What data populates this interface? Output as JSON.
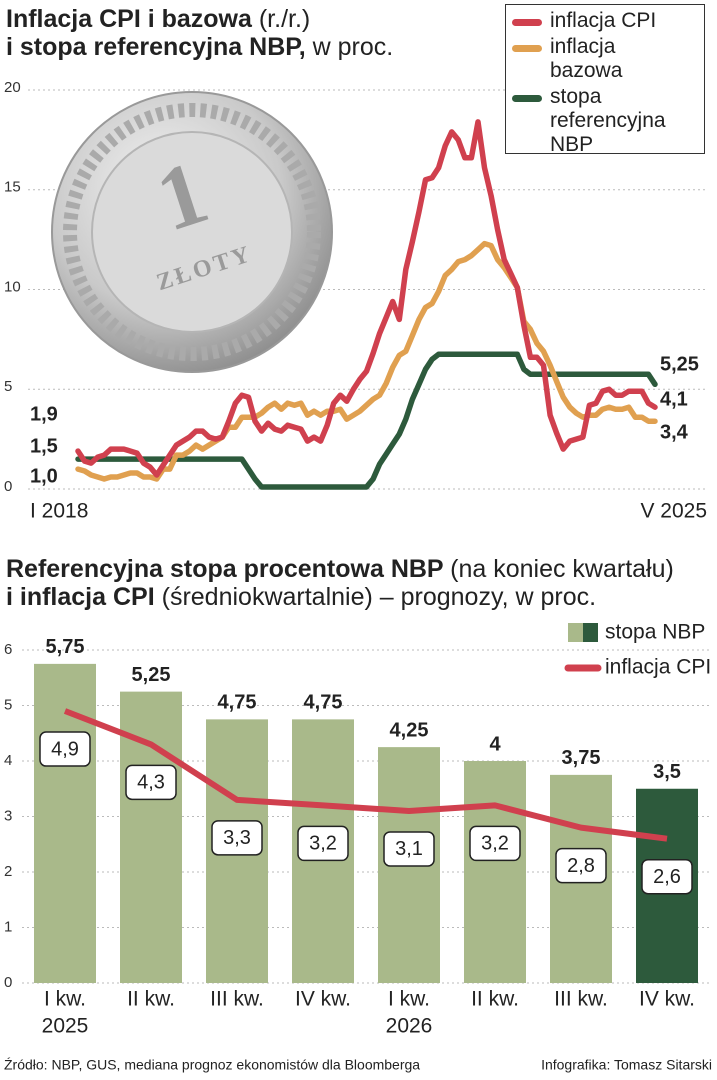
{
  "chart_data": [
    {
      "type": "line",
      "title": [
        "Inflacja CPI i bazowa",
        "(r./r.)",
        "i stopa referencyjna NBP,",
        "w proc."
      ],
      "categories": [
        "I 2018",
        null,
        null,
        null,
        null,
        null,
        null,
        null,
        null,
        null,
        null,
        null,
        null,
        null,
        null,
        null,
        null,
        null,
        null,
        null,
        null,
        null,
        null,
        null,
        null,
        null,
        null,
        null,
        null,
        null,
        null,
        null,
        null,
        null,
        null,
        null,
        null,
        null,
        null,
        null,
        null,
        null,
        null,
        null,
        null,
        null,
        null,
        null,
        null,
        null,
        null,
        null,
        null,
        null,
        null,
        null,
        null,
        null,
        null,
        null,
        null,
        null,
        null,
        null,
        null,
        null,
        null,
        null,
        null,
        null,
        null,
        null,
        null,
        null,
        null,
        null,
        null,
        null,
        null,
        null,
        null,
        null,
        null,
        null,
        null,
        null,
        null,
        null,
        "V 2025"
      ],
      "ylim": [
        0,
        20
      ],
      "yticks": [
        0,
        5,
        10,
        15,
        20
      ],
      "grid": true,
      "series": [
        {
          "name": "inflacja CPI",
          "color": "#d0404e",
          "values": [
            1.9,
            1.4,
            1.3,
            1.6,
            1.7,
            2.0,
            2.0,
            2.0,
            1.9,
            1.8,
            1.3,
            1.1,
            0.7,
            1.2,
            1.7,
            2.2,
            2.4,
            2.6,
            2.9,
            2.9,
            2.6,
            2.5,
            2.6,
            3.4,
            4.3,
            4.7,
            4.6,
            3.4,
            2.9,
            3.3,
            3.0,
            2.9,
            3.2,
            3.1,
            3.0,
            2.4,
            2.6,
            2.4,
            3.2,
            4.3,
            4.7,
            4.4,
            5.0,
            5.5,
            5.9,
            6.8,
            7.8,
            8.6,
            9.4,
            8.5,
            11.0,
            12.4,
            13.9,
            15.5,
            15.6,
            16.1,
            17.2,
            17.9,
            17.5,
            16.6,
            16.6,
            18.4,
            16.1,
            14.7,
            13.0,
            11.5,
            10.8,
            10.1,
            8.2,
            6.6,
            6.6,
            6.2,
            3.7,
            2.8,
            2.0,
            2.4,
            2.5,
            2.6,
            4.2,
            4.3,
            4.9,
            5.0,
            4.7,
            4.7,
            4.9,
            4.9,
            4.9,
            4.3,
            4.1
          ],
          "value_labels": [
            "1,9",
            null,
            null,
            null,
            null,
            null,
            null,
            null,
            null,
            null,
            null,
            null,
            null,
            null,
            null,
            null,
            null,
            null,
            null,
            null,
            null,
            null,
            null,
            null,
            null,
            null,
            null,
            null,
            null,
            null,
            null,
            null,
            null,
            null,
            null,
            null,
            null,
            null,
            null,
            null,
            null,
            null,
            null,
            null,
            null,
            null,
            null,
            null,
            null,
            null,
            null,
            null,
            null,
            null,
            null,
            null,
            null,
            null,
            null,
            null,
            null,
            null,
            null,
            null,
            null,
            null,
            null,
            null,
            null,
            null,
            null,
            null,
            null,
            null,
            null,
            null,
            null,
            null,
            null,
            null,
            null,
            null,
            null,
            null,
            null,
            null,
            null,
            null,
            "4,1"
          ]
        },
        {
          "name": "inflacja bazowa",
          "color": "#e0a050",
          "values": [
            1.0,
            0.9,
            0.7,
            0.6,
            0.5,
            0.6,
            0.6,
            0.7,
            0.8,
            0.8,
            0.6,
            0.6,
            0.5,
            1.0,
            1.0,
            1.7,
            1.7,
            1.9,
            2.2,
            2.0,
            2.2,
            2.4,
            2.6,
            3.1,
            3.1,
            3.6,
            3.6,
            3.6,
            3.8,
            4.1,
            4.3,
            4.0,
            4.3,
            4.2,
            4.3,
            3.7,
            3.9,
            3.7,
            3.9,
            3.9,
            4.0,
            3.5,
            3.7,
            3.9,
            4.2,
            4.5,
            4.7,
            5.3,
            6.1,
            6.7,
            6.9,
            7.7,
            8.5,
            9.1,
            9.3,
            9.9,
            10.7,
            11.0,
            11.4,
            11.5,
            11.7,
            12.0,
            12.3,
            12.2,
            11.5,
            11.1,
            10.6,
            10.1,
            8.4,
            8.0,
            7.3,
            6.9,
            6.2,
            5.4,
            4.6,
            4.1,
            3.8,
            3.6,
            3.7,
            3.7,
            4.0,
            4.1,
            4.0,
            4.0,
            4.1,
            3.6,
            3.6,
            3.4,
            3.4
          ],
          "value_labels": [
            "1,0",
            null,
            null,
            null,
            null,
            null,
            null,
            null,
            null,
            null,
            null,
            null,
            null,
            null,
            null,
            null,
            null,
            null,
            null,
            null,
            null,
            null,
            null,
            null,
            null,
            null,
            null,
            null,
            null,
            null,
            null,
            null,
            null,
            null,
            null,
            null,
            null,
            null,
            null,
            null,
            null,
            null,
            null,
            null,
            null,
            null,
            null,
            null,
            null,
            null,
            null,
            null,
            null,
            null,
            null,
            null,
            null,
            null,
            null,
            null,
            null,
            null,
            null,
            null,
            null,
            null,
            null,
            null,
            null,
            null,
            null,
            null,
            null,
            null,
            null,
            null,
            null,
            null,
            null,
            null,
            null,
            null,
            null,
            null,
            null,
            null,
            null,
            null,
            "3,4"
          ]
        },
        {
          "name": "stopa referencyjna NBP",
          "color": "#2d5a3c",
          "values": [
            1.5,
            1.5,
            1.5,
            1.5,
            1.5,
            1.5,
            1.5,
            1.5,
            1.5,
            1.5,
            1.5,
            1.5,
            1.5,
            1.5,
            1.5,
            1.5,
            1.5,
            1.5,
            1.5,
            1.5,
            1.5,
            1.5,
            1.5,
            1.5,
            1.5,
            1.5,
            1.0,
            0.5,
            0.1,
            0.1,
            0.1,
            0.1,
            0.1,
            0.1,
            0.1,
            0.1,
            0.1,
            0.1,
            0.1,
            0.1,
            0.1,
            0.1,
            0.1,
            0.1,
            0.1,
            0.5,
            1.25,
            1.75,
            2.25,
            2.75,
            3.5,
            4.5,
            5.25,
            6.0,
            6.5,
            6.75,
            6.75,
            6.75,
            6.75,
            6.75,
            6.75,
            6.75,
            6.75,
            6.75,
            6.75,
            6.75,
            6.75,
            6.75,
            6.0,
            5.75,
            5.75,
            5.75,
            5.75,
            5.75,
            5.75,
            5.75,
            5.75,
            5.75,
            5.75,
            5.75,
            5.75,
            5.75,
            5.75,
            5.75,
            5.75,
            5.75,
            5.75,
            5.75,
            5.25
          ],
          "value_labels": [
            "1,5",
            null,
            null,
            null,
            null,
            null,
            null,
            null,
            null,
            null,
            null,
            null,
            null,
            null,
            null,
            null,
            null,
            null,
            null,
            null,
            null,
            null,
            null,
            null,
            null,
            null,
            null,
            null,
            null,
            null,
            null,
            null,
            null,
            null,
            null,
            null,
            null,
            null,
            null,
            null,
            null,
            null,
            null,
            null,
            null,
            null,
            null,
            null,
            null,
            null,
            null,
            null,
            null,
            null,
            null,
            null,
            null,
            null,
            null,
            null,
            null,
            null,
            null,
            null,
            null,
            null,
            null,
            null,
            null,
            null,
            null,
            null,
            null,
            null,
            null,
            null,
            null,
            null,
            null,
            null,
            null,
            null,
            null,
            null,
            null,
            null,
            null,
            null,
            "5,25"
          ]
        }
      ]
    },
    {
      "type": "bar",
      "title": [
        "Referencyjna stopa procentowa NBP",
        "(na koniec kwartału)",
        "i inflacja CPI",
        "(średniokwartalnie) – prognozy, w proc."
      ],
      "categories": [
        "I kw.",
        "II kw.",
        "III kw.",
        "IV kw.",
        "I kw.",
        "II kw.",
        "III kw.",
        "IV kw."
      ],
      "x_group_labels": [
        "2025",
        "2026"
      ],
      "ylim": [
        0,
        6
      ],
      "yticks": [
        0,
        1,
        2,
        3,
        4,
        5,
        6
      ],
      "grid": true,
      "series": [
        {
          "name": "stopa NBP",
          "type": "bar",
          "colors": [
            "#a9b98a",
            "#a9b98a",
            "#a9b98a",
            "#a9b98a",
            "#a9b98a",
            "#a9b98a",
            "#a9b98a",
            "#2d5a3c"
          ],
          "values": [
            5.75,
            5.25,
            4.75,
            4.75,
            4.25,
            4,
            3.75,
            3.5
          ],
          "value_labels": [
            "5,75",
            "5,25",
            "4,75",
            "4,75",
            "4,25",
            "4",
            "3,75",
            "3,5"
          ]
        },
        {
          "name": "inflacja CPI",
          "type": "line",
          "color": "#d0404e",
          "values": [
            4.9,
            4.3,
            3.3,
            3.2,
            3.1,
            3.2,
            2.8,
            2.6
          ],
          "value_labels": [
            "4,9",
            "4,3",
            "3,3",
            "3,2",
            "3,1",
            "3,2",
            "2,8",
            "2,6"
          ]
        }
      ]
    }
  ],
  "coin": {
    "denomination": "1",
    "label": "ZŁOTY"
  },
  "footer": {
    "source": "Źródło: NBP, GUS, mediana prognoz ekonomistów dla Bloomberga",
    "credit": "Infografika: Tomasz Sitarski"
  }
}
